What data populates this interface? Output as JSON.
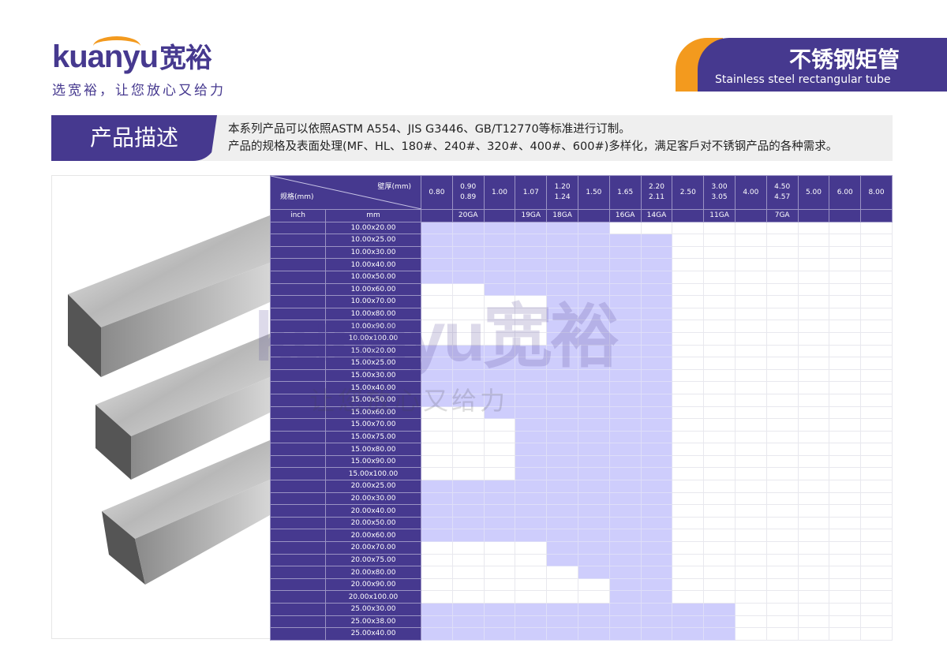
{
  "brand": {
    "logo_text": "kuanyu宽裕",
    "slogan": "选宽裕，让您放心又给力",
    "accent": "#46398f",
    "orange": "#f39a1e",
    "shade": "#cecdfc"
  },
  "title": {
    "cn": "不锈钢矩管",
    "en": "Stainless steel rectangular tube"
  },
  "description": {
    "label": "产品描述",
    "line1": "本系列产品可以依照ASTM A554、JIS G3446、GB/T12770等标准进行订制。",
    "line2": "产品的规格及表面处理(MF、HL、180#、240#、320#、400#、600#)多样化，满足客戶对不锈钢产品的各种需求。"
  },
  "table": {
    "corner_top": "壁厚(mm)",
    "corner_bottom": "规格(mm)",
    "inch_label": "inch",
    "mm_label": "mm",
    "thickness": [
      [
        "0.80"
      ],
      [
        "0.90",
        "0.89"
      ],
      [
        "1.00"
      ],
      [
        "1.07"
      ],
      [
        "1.20",
        "1.24"
      ],
      [
        "1.50"
      ],
      [
        "1.65"
      ],
      [
        "2.20",
        "2.11"
      ],
      [
        "2.50"
      ],
      [
        "3.00",
        "3.05"
      ],
      [
        "4.00"
      ],
      [
        "4.50",
        "4.57"
      ],
      [
        "5.00"
      ],
      [
        "6.00"
      ],
      [
        "8.00"
      ]
    ],
    "gauge": [
      "",
      "20GA",
      "",
      "19GA",
      "18GA",
      "",
      "16GA",
      "14GA",
      "",
      "11GA",
      "",
      "7GA",
      "",
      "",
      ""
    ],
    "rows": [
      {
        "mm": "10.00x20.00",
        "from": "0.80",
        "to": "1.50"
      },
      {
        "mm": "10.00x25.00",
        "from": "0.80",
        "to": "2.20"
      },
      {
        "mm": "10.00x30.00",
        "from": "0.80",
        "to": "2.20"
      },
      {
        "mm": "10.00x40.00",
        "from": "0.80",
        "to": "2.20"
      },
      {
        "mm": "10.00x50.00",
        "from": "0.80",
        "to": "2.20"
      },
      {
        "mm": "10.00x60.00",
        "from": "1.00",
        "to": "2.20"
      },
      {
        "mm": "10.00x70.00",
        "from": "1.20",
        "to": "2.20"
      },
      {
        "mm": "10.00x80.00",
        "from": "1.20",
        "to": "2.20"
      },
      {
        "mm": "10.00x90.00",
        "from": "1.20",
        "to": "2.20"
      },
      {
        "mm": "10.00x100.00",
        "from": "1.20",
        "to": "2.20"
      },
      {
        "mm": "15.00x20.00",
        "from": "0.80",
        "to": "2.20"
      },
      {
        "mm": "15.00x25.00",
        "from": "0.80",
        "to": "2.20"
      },
      {
        "mm": "15.00x30.00",
        "from": "0.80",
        "to": "2.20"
      },
      {
        "mm": "15.00x40.00",
        "from": "0.80",
        "to": "2.20"
      },
      {
        "mm": "15.00x50.00",
        "from": "0.80",
        "to": "2.20"
      },
      {
        "mm": "15.00x60.00",
        "from": "1.00",
        "to": "2.20"
      },
      {
        "mm": "15.00x70.00",
        "from": "1.07",
        "to": "2.20"
      },
      {
        "mm": "15.00x75.00",
        "from": "1.07",
        "to": "2.20"
      },
      {
        "mm": "15.00x80.00",
        "from": "1.07",
        "to": "2.20"
      },
      {
        "mm": "15.00x90.00",
        "from": "1.07",
        "to": "2.20"
      },
      {
        "mm": "15.00x100.00",
        "from": "1.07",
        "to": "2.20"
      },
      {
        "mm": "20.00x25.00",
        "from": "0.80",
        "to": "2.20"
      },
      {
        "mm": "20.00x30.00",
        "from": "0.80",
        "to": "2.20"
      },
      {
        "mm": "20.00x40.00",
        "from": "0.80",
        "to": "2.20"
      },
      {
        "mm": "20.00x50.00",
        "from": "0.80",
        "to": "2.20"
      },
      {
        "mm": "20.00x60.00",
        "from": "0.80",
        "to": "2.20"
      },
      {
        "mm": "20.00x70.00",
        "from": "1.20",
        "to": "2.20"
      },
      {
        "mm": "20.00x75.00",
        "from": "1.20",
        "to": "2.20"
      },
      {
        "mm": "20.00x80.00",
        "from": "1.50",
        "to": "2.20"
      },
      {
        "mm": "20.00x90.00",
        "from": "1.65",
        "to": "2.20"
      },
      {
        "mm": "20.00x100.00",
        "from": "1.65",
        "to": "2.20"
      },
      {
        "mm": "25.00x30.00",
        "from": "0.80",
        "to": "3.00"
      },
      {
        "mm": "25.00x38.00",
        "from": "0.80",
        "to": "3.00"
      },
      {
        "mm": "25.00x40.00",
        "from": "0.80",
        "to": "3.00"
      }
    ]
  }
}
